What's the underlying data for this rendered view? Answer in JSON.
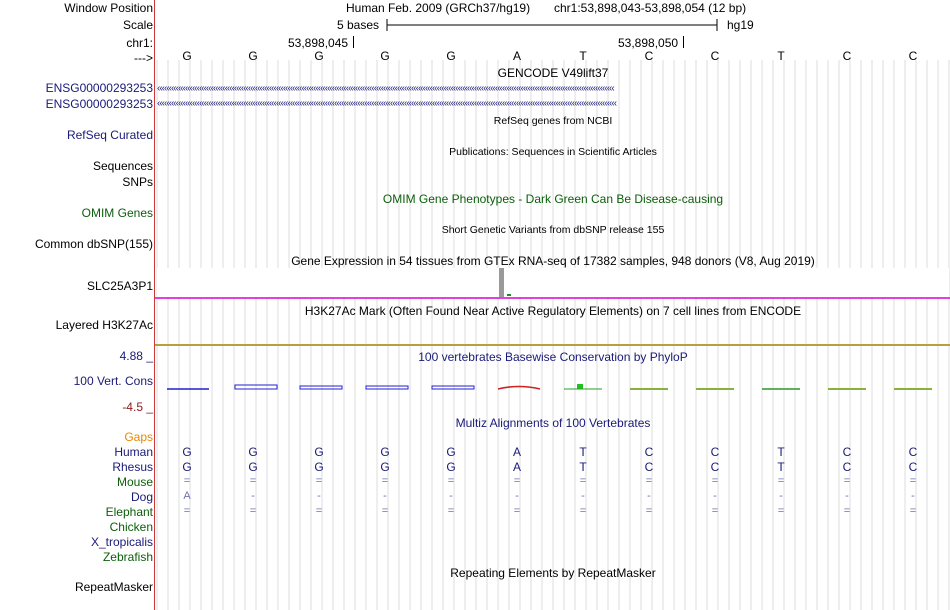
{
  "header": {
    "window_position_label": "Window Position",
    "assembly": "Human Feb. 2009 (GRCh37/hg19)",
    "position": "chr1:53,898,043-53,898,054 (12 bp)",
    "scale_label": "Scale",
    "scale_text": "5 bases",
    "scale_db": "hg19",
    "chrom_label": "chr1:",
    "coord1": "53,898,045",
    "coord2": "53,898,050",
    "strand_label": "--->"
  },
  "bases": [
    "G",
    "G",
    "G",
    "G",
    "G",
    "A",
    "T",
    "C",
    "C",
    "T",
    "C",
    "C"
  ],
  "tracks": {
    "gencode": {
      "title": "GENCODE V49lift37",
      "genes": [
        "ENSG00000293253",
        "ENSG00000293253"
      ]
    },
    "refseq": {
      "label": "RefSeq Curated",
      "title": "RefSeq genes from NCBI"
    },
    "pubs": {
      "label": "Sequences",
      "title": "Publications: Sequences in Scientific Articles"
    },
    "snps": {
      "label": "SNPs"
    },
    "omim": {
      "label": "OMIM Genes",
      "title": "OMIM Gene Phenotypes - Dark Green Can Be Disease-causing"
    },
    "dbsnp": {
      "label": "Common dbSNP(155)",
      "title": "Short Genetic Variants from dbSNP release 155"
    },
    "gtex": {
      "label": "SLC25A3P1",
      "title": "Gene Expression in 54 tissues from GTEx RNA-seq of 17382 samples, 948 donors (V8, Aug 2019)"
    },
    "h3k27ac": {
      "label": "Layered H3K27Ac",
      "title": "H3K27Ac Mark (Often Found Near Active Regulatory Elements) on 7 cell lines from ENCODE"
    },
    "cons": {
      "label": "100 Vert. Cons",
      "max": "4.88 _",
      "min": "-4.5 _",
      "title": "100 vertebrates Basewise Conservation by PhyloP"
    },
    "multiz": {
      "title": "Multiz Alignments of 100 Vertebrates",
      "gaps_label": "Gaps",
      "species": [
        "Human",
        "Rhesus",
        "Mouse",
        "Dog",
        "Elephant",
        "Chicken",
        "X_tropicalis",
        "Zebrafish"
      ],
      "rhesus": [
        "G",
        "G",
        "G",
        "G",
        "G",
        "A",
        "T",
        "C",
        "C",
        "T",
        "C",
        "C"
      ],
      "mouse": [
        "=",
        "=",
        "=",
        "=",
        "=",
        "=",
        "=",
        "=",
        "=",
        "=",
        "=",
        "="
      ],
      "dog": [
        "A",
        "-",
        "-",
        "-",
        "-",
        "-",
        "-",
        "-",
        "-",
        "-",
        "-",
        "-"
      ],
      "elephant": [
        "=",
        "=",
        "=",
        "=",
        "=",
        "=",
        "=",
        "=",
        "=",
        "=",
        "=",
        "="
      ]
    },
    "repeatmasker": {
      "label": "RepeatMasker",
      "title": "Repeating Elements by RepeatMasker"
    }
  },
  "colors": {
    "pink_line": "#e040e0",
    "gold_line": "#b8a040",
    "label_navy": "#1a1a78",
    "omim_green": "#0b5e0b"
  }
}
